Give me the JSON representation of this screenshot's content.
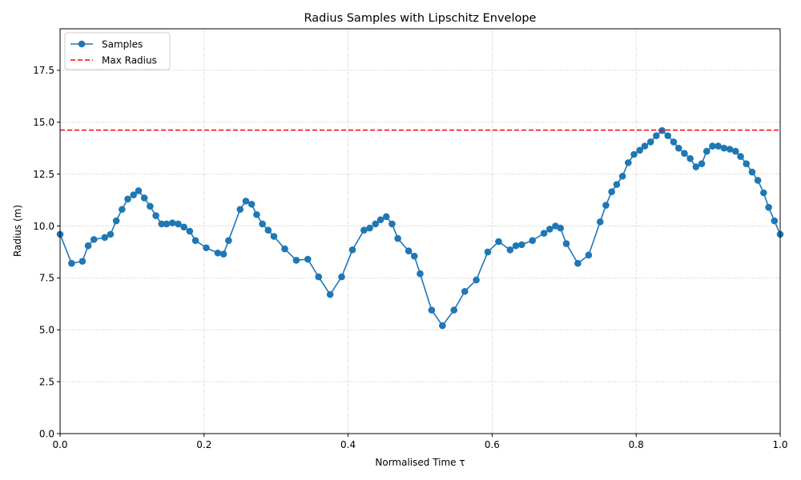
{
  "chart_data": {
    "type": "line",
    "title": "Radius Samples with Lipschitz Envelope",
    "xlabel": "Normalised Time τ",
    "ylabel": "Radius (m)",
    "xlim": [
      0.0,
      1.0
    ],
    "ylim": [
      0.0,
      19.5
    ],
    "xticks": [
      "0.0",
      "0.2",
      "0.4",
      "0.6",
      "0.8",
      "1.0"
    ],
    "yticks": [
      "0.0",
      "2.5",
      "5.0",
      "7.5",
      "10.0",
      "12.5",
      "15.0",
      "17.5"
    ],
    "grid": true,
    "legend_position": "top-left",
    "series": [
      {
        "name": "Samples",
        "color": "#1f77b4",
        "marker": "circle",
        "x": [
          0.0,
          0.016,
          0.031,
          0.039,
          0.047,
          0.062,
          0.07,
          0.078,
          0.086,
          0.094,
          0.102,
          0.109,
          0.117,
          0.125,
          0.133,
          0.141,
          0.148,
          0.156,
          0.164,
          0.172,
          0.18,
          0.188,
          0.203,
          0.219,
          0.227,
          0.234,
          0.25,
          0.258,
          0.266,
          0.273,
          0.281,
          0.289,
          0.297,
          0.312,
          0.328,
          0.344,
          0.359,
          0.375,
          0.391,
          0.406,
          0.422,
          0.43,
          0.438,
          0.445,
          0.453,
          0.461,
          0.469,
          0.484,
          0.492,
          0.5,
          0.516,
          0.531,
          0.547,
          0.562,
          0.578,
          0.594,
          0.609,
          0.625,
          0.633,
          0.641,
          0.656,
          0.672,
          0.68,
          0.688,
          0.695,
          0.703,
          0.719,
          0.734,
          0.75,
          0.758,
          0.766,
          0.773,
          0.781,
          0.789,
          0.797,
          0.805,
          0.812,
          0.82,
          0.828,
          0.836,
          0.844,
          0.852,
          0.859,
          0.867,
          0.875,
          0.883,
          0.891,
          0.898,
          0.906,
          0.914,
          0.922,
          0.93,
          0.938,
          0.945,
          0.953,
          0.961,
          0.969,
          0.977,
          0.984,
          0.992,
          1.0
        ],
        "y": [
          9.6,
          8.2,
          8.3,
          9.05,
          9.35,
          9.45,
          9.6,
          10.25,
          10.8,
          11.3,
          11.5,
          11.7,
          11.35,
          10.95,
          10.5,
          10.1,
          10.1,
          10.15,
          10.1,
          9.95,
          9.75,
          9.3,
          8.95,
          8.7,
          8.65,
          9.3,
          10.8,
          11.2,
          11.05,
          10.55,
          10.1,
          9.8,
          9.5,
          8.9,
          8.35,
          8.4,
          7.55,
          6.7,
          7.55,
          8.85,
          9.8,
          9.9,
          10.1,
          10.3,
          10.45,
          10.1,
          9.4,
          8.8,
          8.55,
          7.7,
          5.95,
          5.2,
          5.95,
          6.85,
          7.4,
          8.75,
          9.25,
          8.85,
          9.05,
          9.1,
          9.3,
          9.65,
          9.85,
          10.0,
          9.9,
          9.15,
          8.2,
          8.6,
          10.2,
          11.0,
          11.65,
          12.0,
          12.4,
          13.05,
          13.45,
          13.65,
          13.85,
          14.05,
          14.35,
          14.6,
          14.35,
          14.05,
          13.75,
          13.5,
          13.25,
          12.85,
          13.0,
          13.6,
          13.85,
          13.85,
          13.75,
          13.7,
          13.6,
          13.35,
          13.0,
          12.6,
          12.2,
          11.6,
          10.9,
          10.25,
          9.6
        ]
      },
      {
        "name": "Max Radius",
        "color": "#ff0000",
        "style": "dashed",
        "y_constant": 14.62
      }
    ]
  }
}
